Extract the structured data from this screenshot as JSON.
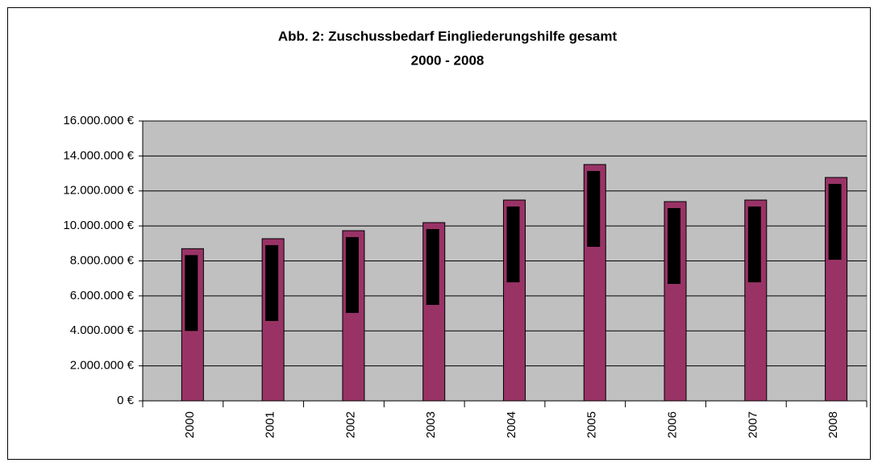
{
  "chart_data": {
    "type": "bar",
    "title": "Abb. 2:  Zuschussbedarf Eingliederungshilfe gesamt",
    "subtitle": "2000 - 2008",
    "categories": [
      "2000",
      "2001",
      "2002",
      "2003",
      "2004",
      "2005",
      "2006",
      "2007",
      "2008"
    ],
    "values": [
      8700000,
      9270000,
      9730000,
      10190000,
      11480000,
      13510000,
      11390000,
      11480000,
      12770000
    ],
    "color": "#993366",
    "ylim": [
      0,
      16000000
    ],
    "yticks": [
      {
        "value": 0,
        "label": "0 €"
      },
      {
        "value": 2000000,
        "label": "2.000.000 €"
      },
      {
        "value": 4000000,
        "label": "4.000.000 €"
      },
      {
        "value": 6000000,
        "label": "6.000.000 €"
      },
      {
        "value": 8000000,
        "label": "8.000.000 €"
      },
      {
        "value": 10000000,
        "label": "10.000.000 €"
      },
      {
        "value": 12000000,
        "label": "12.000.000 €"
      },
      {
        "value": 14000000,
        "label": "14.000.000 €"
      },
      {
        "value": 16000000,
        "label": "16.000.000 €"
      }
    ],
    "grid": true
  }
}
